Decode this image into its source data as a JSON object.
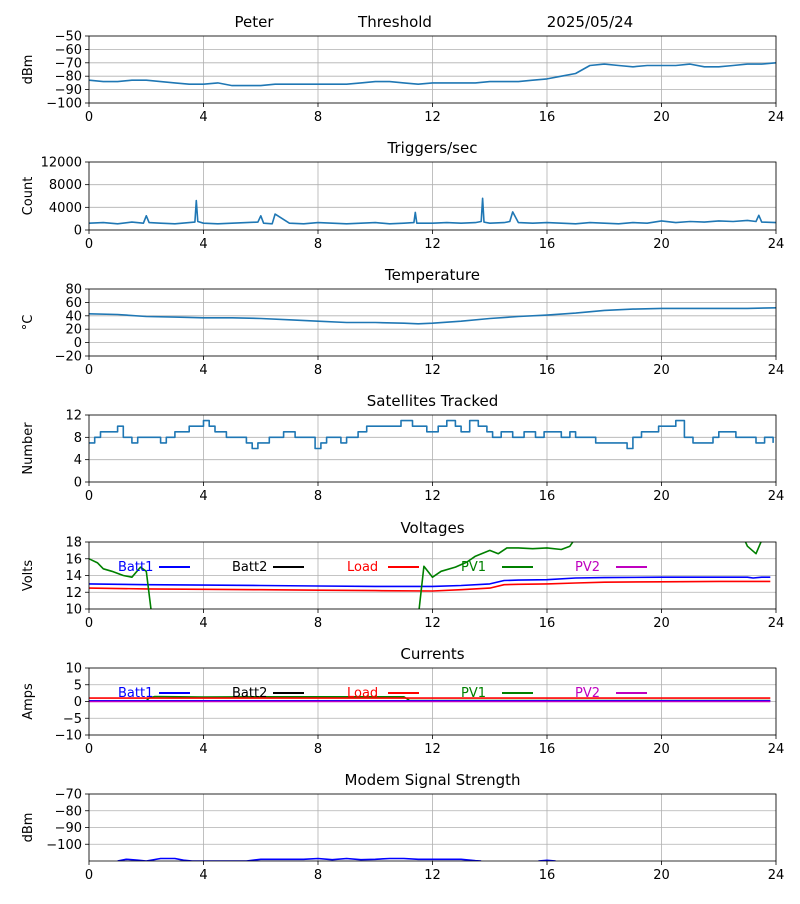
{
  "header": {
    "station": "Peter",
    "threshold_label": "Threshold",
    "date": "2025/05/24"
  },
  "colors": {
    "default_series": "#1f77b4",
    "batt1": "#0000ff",
    "batt2": "#000000",
    "load": "#ff0000",
    "pv1": "#008000",
    "pv2": "#bf00bf",
    "grid": "#b0b0b0"
  },
  "chart_data": [
    {
      "type": "line",
      "title": "",
      "ylabel": "dBm",
      "xlim": [
        0,
        24
      ],
      "ylim": [
        -100,
        -50
      ],
      "yticks": [
        -100,
        -90,
        -80,
        -70,
        -60,
        -50
      ],
      "xticks": [
        0,
        4,
        8,
        12,
        16,
        20,
        24
      ],
      "series": [
        {
          "color": "#1f77b4",
          "x": [
            0,
            0.5,
            1,
            1.5,
            2,
            2.5,
            3,
            3.5,
            4,
            4.5,
            5,
            5.5,
            6,
            6.5,
            7,
            7.5,
            8,
            8.5,
            9,
            9.5,
            10,
            10.5,
            11,
            11.5,
            12,
            12.5,
            13,
            13.5,
            14,
            14.5,
            15,
            15.5,
            16,
            16.5,
            17,
            17.5,
            18,
            18.5,
            19,
            19.5,
            20,
            20.5,
            21,
            21.5,
            22,
            22.5,
            23,
            23.5,
            24
          ],
          "y": [
            -83,
            -84,
            -84,
            -83,
            -83,
            -84,
            -85,
            -86,
            -86,
            -85,
            -87,
            -87,
            -87,
            -86,
            -86,
            -86,
            -86,
            -86,
            -86,
            -85,
            -84,
            -84,
            -85,
            -86,
            -85,
            -85,
            -85,
            -85,
            -84,
            -84,
            -84,
            -83,
            -82,
            -80,
            -78,
            -72,
            -71,
            -72,
            -73,
            -72,
            -72,
            -72,
            -71,
            -73,
            -73,
            -72,
            -71,
            -71,
            -70
          ]
        }
      ]
    },
    {
      "type": "line",
      "title": "Triggers/sec",
      "ylabel": "Count",
      "xlim": [
        0,
        24
      ],
      "ylim": [
        0,
        12000
      ],
      "yticks": [
        0,
        4000,
        8000,
        12000
      ],
      "xticks": [
        0,
        4,
        8,
        12,
        16,
        20,
        24
      ],
      "series": [
        {
          "color": "#1f77b4",
          "x": [
            0,
            0.5,
            1,
            1.5,
            1.9,
            2,
            2.1,
            2.5,
            3,
            3.5,
            3.7,
            3.75,
            3.8,
            4,
            4.5,
            5,
            5.5,
            5.9,
            6,
            6.1,
            6.4,
            6.5,
            7,
            7.5,
            8,
            8.5,
            9,
            9.5,
            10,
            10.5,
            11,
            11.35,
            11.4,
            11.45,
            12,
            12.5,
            13,
            13.5,
            13.7,
            13.75,
            13.8,
            14,
            14.5,
            14.7,
            14.8,
            15,
            15.5,
            16,
            16.5,
            17,
            17.5,
            18,
            18.5,
            19,
            19.5,
            20,
            20.5,
            21,
            21.5,
            22,
            22.5,
            23,
            23.3,
            23.4,
            23.5,
            24
          ],
          "y": [
            1200,
            1300,
            1100,
            1400,
            1200,
            2500,
            1300,
            1200,
            1100,
            1300,
            1400,
            5200,
            1500,
            1200,
            1100,
            1200,
            1300,
            1400,
            2500,
            1200,
            1100,
            2800,
            1200,
            1100,
            1300,
            1200,
            1100,
            1200,
            1300,
            1100,
            1200,
            1300,
            3100,
            1200,
            1200,
            1300,
            1200,
            1300,
            1500,
            5600,
            1400,
            1200,
            1300,
            1500,
            3200,
            1300,
            1200,
            1300,
            1200,
            1100,
            1300,
            1200,
            1100,
            1300,
            1200,
            1600,
            1300,
            1500,
            1400,
            1600,
            1500,
            1700,
            1500,
            2600,
            1400,
            1300
          ]
        }
      ]
    },
    {
      "type": "line",
      "title": "Temperature",
      "ylabel": "°C",
      "xlim": [
        0,
        24
      ],
      "ylim": [
        -20,
        80
      ],
      "yticks": [
        -20,
        0,
        20,
        40,
        60,
        80
      ],
      "xticks": [
        0,
        4,
        8,
        12,
        16,
        20,
        24
      ],
      "series": [
        {
          "color": "#1f77b4",
          "x": [
            0,
            1,
            2,
            3,
            4,
            5,
            6,
            7,
            8,
            9,
            10,
            11,
            11.5,
            12,
            13,
            14,
            15,
            16,
            17,
            18,
            19,
            20,
            21,
            22,
            23,
            24
          ],
          "y": [
            43,
            42,
            39,
            38,
            37,
            37,
            36,
            34,
            32,
            30,
            30,
            29,
            28,
            29,
            32,
            36,
            39,
            41,
            44,
            48,
            50,
            51,
            51,
            51,
            51,
            52
          ]
        }
      ]
    },
    {
      "type": "line",
      "title": "Satellites Tracked",
      "ylabel": "Number",
      "xlim": [
        0,
        24
      ],
      "ylim": [
        0,
        12
      ],
      "yticks": [
        0,
        4,
        8,
        12
      ],
      "xticks": [
        0,
        4,
        8,
        12,
        16,
        20,
        24
      ],
      "step": true,
      "series": [
        {
          "color": "#1f77b4",
          "x": [
            0,
            0.2,
            0.4,
            1.0,
            1.2,
            1.5,
            1.7,
            2.2,
            2.5,
            2.7,
            3.0,
            3.3,
            3.5,
            3.8,
            4.0,
            4.2,
            4.4,
            4.8,
            5.2,
            5.5,
            5.7,
            5.9,
            6.3,
            6.5,
            6.8,
            7.2,
            7.6,
            7.9,
            8.1,
            8.3,
            8.6,
            8.8,
            9.0,
            9.4,
            9.7,
            10.0,
            10.5,
            10.9,
            11.3,
            11.6,
            11.8,
            12.2,
            12.5,
            12.8,
            13.0,
            13.3,
            13.6,
            13.9,
            14.1,
            14.4,
            14.8,
            15.2,
            15.6,
            15.9,
            16.2,
            16.5,
            16.8,
            17.0,
            17.3,
            17.7,
            18.0,
            18.4,
            18.8,
            19.0,
            19.3,
            19.6,
            19.9,
            20.2,
            20.5,
            20.8,
            21.1,
            21.4,
            21.8,
            22.0,
            22.2,
            22.6,
            23.0,
            23.3,
            23.6,
            23.9
          ],
          "y": [
            7,
            8,
            9,
            10,
            8,
            7,
            8,
            8,
            7,
            8,
            9,
            9,
            10,
            10,
            11,
            10,
            9,
            8,
            8,
            7,
            6,
            7,
            8,
            8,
            9,
            8,
            8,
            6,
            7,
            8,
            8,
            7,
            8,
            9,
            10,
            10,
            10,
            11,
            10,
            10,
            9,
            10,
            11,
            10,
            9,
            11,
            10,
            9,
            8,
            9,
            8,
            9,
            8,
            9,
            9,
            8,
            9,
            8,
            8,
            7,
            7,
            7,
            6,
            8,
            9,
            9,
            10,
            10,
            11,
            8,
            7,
            7,
            8,
            9,
            9,
            8,
            8,
            7,
            8,
            7
          ]
        }
      ]
    },
    {
      "type": "line",
      "title": "Voltages",
      "ylabel": "Volts",
      "xlim": [
        0,
        24
      ],
      "ylim": [
        10,
        18
      ],
      "yticks": [
        10,
        12,
        14,
        16,
        18
      ],
      "xticks": [
        0,
        4,
        8,
        12,
        16,
        20,
        24
      ],
      "legend": [
        "Batt1",
        "Batt2",
        "Load",
        "PV1",
        "PV2"
      ],
      "series": [
        {
          "name": "Batt1",
          "color": "#0000ff",
          "x": [
            0,
            2,
            4,
            6,
            8,
            10,
            12,
            13,
            14,
            14.5,
            15,
            16,
            17,
            18,
            20,
            22,
            23,
            23.2,
            23.5,
            23.8
          ],
          "y": [
            13.0,
            12.9,
            12.85,
            12.8,
            12.75,
            12.7,
            12.7,
            12.8,
            13.0,
            13.4,
            13.45,
            13.5,
            13.7,
            13.75,
            13.8,
            13.8,
            13.8,
            13.7,
            13.8,
            13.8
          ]
        },
        {
          "name": "Load",
          "color": "#ff0000",
          "x": [
            0,
            2,
            4,
            6,
            8,
            10,
            12,
            13,
            14,
            14.5,
            15,
            16,
            17,
            18,
            20,
            22,
            23.8
          ],
          "y": [
            12.5,
            12.4,
            12.35,
            12.3,
            12.25,
            12.2,
            12.15,
            12.3,
            12.5,
            12.9,
            12.95,
            13.0,
            13.1,
            13.2,
            13.25,
            13.3,
            13.3
          ]
        },
        {
          "name": "PV1",
          "color": "#008000",
          "x": [
            0,
            0.3,
            0.5,
            0.8,
            1.2,
            1.5,
            1.8,
            2.0,
            2.2,
            11.5,
            11.7,
            12.0,
            12.3,
            12.8,
            13.2,
            13.5,
            14.0,
            14.3,
            14.6,
            15.0,
            15.5,
            16.0,
            16.5,
            16.8,
            17.0,
            17.1,
            22.8,
            23.0,
            23.3,
            23.5
          ],
          "y": [
            16.0,
            15.5,
            14.8,
            14.5,
            14.0,
            13.8,
            15.0,
            14.5,
            9.0,
            9.0,
            15.1,
            13.8,
            14.5,
            15.0,
            15.6,
            16.3,
            17.0,
            16.6,
            17.3,
            17.3,
            17.2,
            17.3,
            17.1,
            17.5,
            18.5,
            19.0,
            19.0,
            17.5,
            16.6,
            18.2
          ]
        }
      ]
    },
    {
      "type": "line",
      "title": "Currents",
      "ylabel": "Amps",
      "xlim": [
        0,
        24
      ],
      "ylim": [
        -10,
        10
      ],
      "yticks": [
        -10,
        -5,
        0,
        5,
        10
      ],
      "xticks": [
        0,
        4,
        8,
        12,
        16,
        20,
        24
      ],
      "legend": [
        "Batt1",
        "Batt2",
        "Load",
        "PV1",
        "PV2"
      ],
      "series": [
        {
          "name": "PV1",
          "color": "#008000",
          "x": [
            0,
            2.0,
            2.1,
            2.3,
            4,
            6,
            8,
            10,
            11.0,
            11.2,
            12,
            14,
            16,
            18,
            20,
            22,
            23.8
          ],
          "y": [
            0.2,
            0.2,
            1.0,
            1.5,
            1.3,
            1.4,
            1.4,
            1.4,
            1.4,
            0.3,
            0.3,
            0.3,
            0.3,
            0.3,
            0.3,
            0.3,
            0.3
          ]
        },
        {
          "name": "Load",
          "color": "#ff0000",
          "x": [
            0,
            4,
            8,
            12,
            16,
            20,
            23.8
          ],
          "y": [
            1.0,
            1.0,
            1.0,
            1.0,
            1.0,
            1.0,
            1.0
          ]
        },
        {
          "name": "Batt1",
          "color": "#0000ff",
          "x": [
            0,
            4,
            8,
            12,
            16,
            20,
            23.8
          ],
          "y": [
            0.2,
            0.2,
            0.2,
            0.2,
            0.2,
            0.2,
            0.2
          ]
        },
        {
          "name": "PV2",
          "color": "#bf00bf",
          "x": [
            0,
            4,
            8,
            12,
            16,
            20,
            23.8
          ],
          "y": [
            0.0,
            0.0,
            0.0,
            0.0,
            0.0,
            0.0,
            0.0
          ]
        }
      ]
    },
    {
      "type": "line",
      "title": "Modem Signal Strength",
      "ylabel": "dBm",
      "xlim": [
        0,
        24
      ],
      "ylim": [
        -110,
        -70
      ],
      "yticks": [
        -100,
        -90,
        -80,
        -70
      ],
      "xticks": [
        0,
        4,
        8,
        12,
        16,
        20,
        24
      ],
      "series": [
        {
          "color": "#0000ff",
          "x": [
            1.0,
            1.3,
            1.7,
            2.0,
            2.5,
            3.0,
            3.3,
            3.6,
            4.0,
            4.5,
            5.0,
            5.5,
            6.0,
            6.5,
            7.0,
            7.5,
            8.0,
            8.5,
            9.0,
            9.5,
            10.0,
            10.5,
            11.0,
            11.5,
            12.0,
            12.5,
            13.0,
            13.5,
            13.7
          ],
          "y": [
            -110,
            -109,
            -109.5,
            -110,
            -108.5,
            -108.5,
            -109.5,
            -110,
            -110,
            -110,
            -110,
            -110,
            -109,
            -109,
            -109,
            -109,
            -108.5,
            -109.2,
            -108.5,
            -109.2,
            -109,
            -108.5,
            -108.5,
            -109,
            -109,
            -109,
            -109,
            -109.8,
            -110
          ]
        },
        {
          "color": "#0000ff",
          "x": [
            15.7,
            16.0,
            16.3
          ],
          "y": [
            -110,
            -109.6,
            -110
          ]
        }
      ]
    }
  ]
}
